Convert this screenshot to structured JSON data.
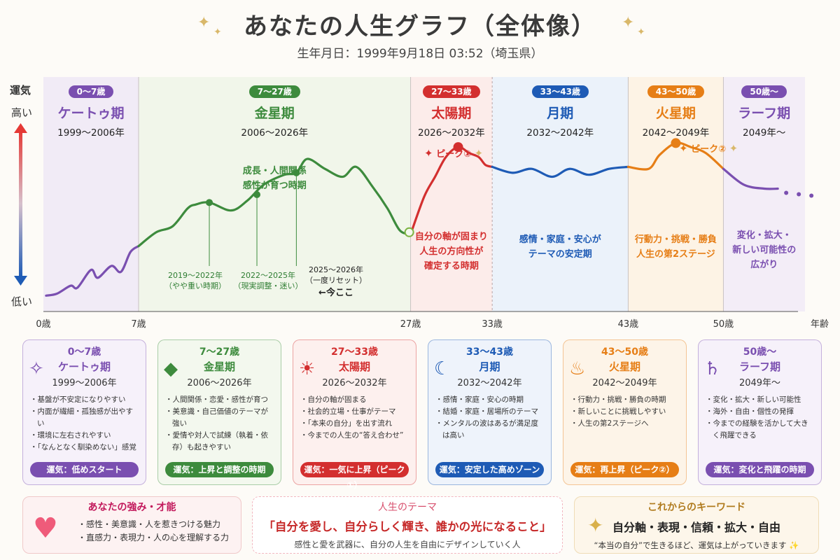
{
  "header": {
    "title": "あなたの人生グラフ（全体像）",
    "subtitle": "生年月日：1999年9月18日 03:52（埼玉県）"
  },
  "yaxis": {
    "name": "運気",
    "high": "高い",
    "low": "低い"
  },
  "xaxis": {
    "unit": "年齢",
    "ticks": [
      "0歳",
      "7歳",
      "27歳",
      "33歳",
      "43歳",
      "50歳"
    ]
  },
  "segments": [
    {
      "age": "0～7歳",
      "name": "ケートゥ期",
      "years": "1999～2006年",
      "color": "#7a4fb0",
      "bg": "#efe8f6",
      "desc": []
    },
    {
      "age": "7～27歳",
      "name": "金星期",
      "years": "2006～2026年",
      "color": "#3d8b3d",
      "bg": "#eef5e8",
      "desc": [
        "成長・人間関係",
        "感性が育つ時期"
      ]
    },
    {
      "age": "27～33歳",
      "name": "太陽期",
      "years": "2026～2032年",
      "color": "#d32f2f",
      "bg": "#fbe9e7",
      "desc": [
        "自分の軸が固まり",
        "人生の方向性が",
        "確定する時期"
      ]
    },
    {
      "age": "33～43歳",
      "name": "月期",
      "years": "2032～2042年",
      "color": "#1e5bb5",
      "bg": "#e8f0fa",
      "desc": [
        "感情・家庭・安心が",
        "テーマの安定期"
      ]
    },
    {
      "age": "43～50歳",
      "name": "火星期",
      "years": "2042～2049年",
      "color": "#e67e16",
      "bg": "#fdf1e2",
      "desc": [
        "行動力・挑戦・勝負",
        "人生の第2ステージ"
      ]
    },
    {
      "age": "50歳～",
      "name": "ラーフ期",
      "years": "2049年～",
      "color": "#7a4fb0",
      "bg": "#f1eaf7",
      "desc": [
        "変化・拡大・",
        "新しい可能性の",
        "広がり"
      ]
    }
  ],
  "annotations": {
    "a1": [
      "2019～2022年",
      "（やや重い時期）"
    ],
    "a2": [
      "2022～2025年",
      "（現実調整・迷い）"
    ],
    "a3": [
      "2025～2026年",
      "（一度リセット）",
      "←今ここ"
    ],
    "peak1": "ピーク①",
    "peak2": "ピーク②"
  },
  "chart_data": {
    "type": "line",
    "title": "あなたの人生グラフ（全体像）",
    "xlabel": "年齢",
    "ylabel": "運気",
    "xlim": [
      0,
      56
    ],
    "ylim": [
      0,
      100
    ],
    "x_ticks": [
      0,
      7,
      27,
      33,
      43,
      50
    ],
    "series": [
      {
        "name": "ケートゥ期",
        "x": [
          0.2,
          1,
          2,
          2.5,
          3.5,
          4,
          5,
          5.7,
          6.4,
          7
        ],
        "y": [
          2,
          3,
          7,
          6,
          15,
          11,
          17,
          14,
          24,
          27
        ]
      },
      {
        "name": "金星期",
        "x": [
          7,
          8.3,
          9.5,
          10.6,
          11.2,
          12.2,
          13.8,
          15,
          16.2,
          17.7,
          18.6,
          19.4,
          20.7,
          22,
          23,
          24.2,
          25.3,
          26.2,
          27
        ],
        "y": [
          27,
          34,
          37,
          46,
          48,
          49,
          45,
          50,
          58,
          63,
          64,
          71,
          66,
          62,
          67,
          57,
          46,
          35,
          33
        ]
      },
      {
        "name": "太陽期",
        "x": [
          27,
          28,
          28.8,
          29.6,
          30.5,
          31.3,
          32,
          32.5,
          33
        ],
        "y": [
          33,
          52,
          62,
          72,
          77,
          74,
          72,
          68,
          67
        ]
      },
      {
        "name": "月期",
        "x": [
          33,
          34.5,
          35.9,
          37.4,
          38.7,
          40.1,
          41.6,
          43
        ],
        "y": [
          67,
          64,
          66,
          62,
          66,
          63,
          66,
          67
        ]
      },
      {
        "name": "火星期",
        "x": [
          43,
          44.5,
          45.3,
          46.5,
          47.6,
          48.7,
          50
        ],
        "y": [
          67,
          66,
          73,
          79,
          77,
          74,
          66
        ]
      },
      {
        "name": "ラーフ期",
        "x": [
          50,
          51.5,
          53,
          54
        ],
        "y": [
          66,
          58,
          56,
          56
        ]
      }
    ],
    "points": [
      {
        "x": 12.2,
        "y": 49
      },
      {
        "x": 15.7,
        "y": 53
      },
      {
        "x": 18.6,
        "y": 64
      },
      {
        "x": 26.9,
        "y": 34
      },
      {
        "x": 30.5,
        "y": 77
      },
      {
        "x": 46.5,
        "y": 79
      }
    ]
  },
  "cards": [
    {
      "age": "0～7歳",
      "name": "ケートゥ期",
      "years": "1999～2006年",
      "icon": "prayer-icon",
      "glyph": "✧",
      "items": [
        "基盤が不安定になりやすい",
        "内面が繊細・孤独感が出やすい",
        "環境に左右されやすい",
        "「なんとなく馴染めない」感覚"
      ],
      "badge": "運気：低めスタート",
      "color": "#7a4fb0",
      "bg": "#f6f1fa"
    },
    {
      "age": "7～27歳",
      "name": "金星期",
      "years": "2006～2026年",
      "icon": "diamond-icon",
      "glyph": "◆",
      "items": [
        "人間関係・恋愛・感性が育つ",
        "美意識・自己価値のテーマが強い",
        "愛情や対人で試練（執着・依存）も起きやすい"
      ],
      "badge": "運気：上昇と調整の時期",
      "color": "#3d8b3d",
      "bg": "#f3f8ee"
    },
    {
      "age": "27～33歳",
      "name": "太陽期",
      "years": "2026～2032年",
      "icon": "sun-icon",
      "glyph": "☀",
      "items": [
        "自分の軸が固まる",
        "社会的立場・仕事がテーマ",
        "「本来の自分」を出す流れ",
        "今までの人生の“答え合わせ”"
      ],
      "badge": "運気：一気に上昇（ピーク①）",
      "color": "#d32f2f",
      "bg": "#fdf0ee"
    },
    {
      "age": "33～43歳",
      "name": "月期",
      "years": "2032～2042年",
      "icon": "moon-icon",
      "glyph": "☾",
      "items": [
        "感情・家庭・安心の時期",
        "結婚・家庭・居場所のテーマ",
        "メンタルの波はあるが満足度は高い"
      ],
      "badge": "運気：安定した高めゾーン",
      "color": "#1e5bb5",
      "bg": "#eef3fb"
    },
    {
      "age": "43～50歳",
      "name": "火星期",
      "years": "2042～2049年",
      "icon": "flame-icon",
      "glyph": "♨",
      "items": [
        "行動力・挑戦・勝負の時期",
        "新しいことに挑戦しやすい",
        "人生の第2ステージへ"
      ],
      "badge": "運気：再上昇（ピーク②）",
      "color": "#e67e16",
      "bg": "#fdf4e8"
    },
    {
      "age": "50歳～",
      "name": "ラーフ期",
      "years": "2049年～",
      "icon": "planet-icon",
      "glyph": "♄",
      "items": [
        "変化・拡大・新しい可能性",
        "海外・自由・個性の発揮",
        "今までの経験を活かして大きく飛躍できる"
      ],
      "badge": "運気：変化と飛躍の時期",
      "color": "#7a4fb0",
      "bg": "#f6f1fa"
    }
  ],
  "strengths": {
    "title": "あなたの強み・才能",
    "items": [
      "感性・美意識・人を惹きつける魅力",
      "直感力・表現力・人の心を理解する力"
    ]
  },
  "theme": {
    "title": "人生のテーマ",
    "main": "「自分を愛し、自分らしく輝き、誰かの光になること」",
    "sub": "感性と愛を武器に、自分の人生を自由にデザインしていく人"
  },
  "keywords": {
    "title": "これからのキーワード",
    "main": "自分軸・表現・信頼・拡大・自由",
    "sub": "“本当の自分”で生きるほど、運気は上がっていきます"
  }
}
